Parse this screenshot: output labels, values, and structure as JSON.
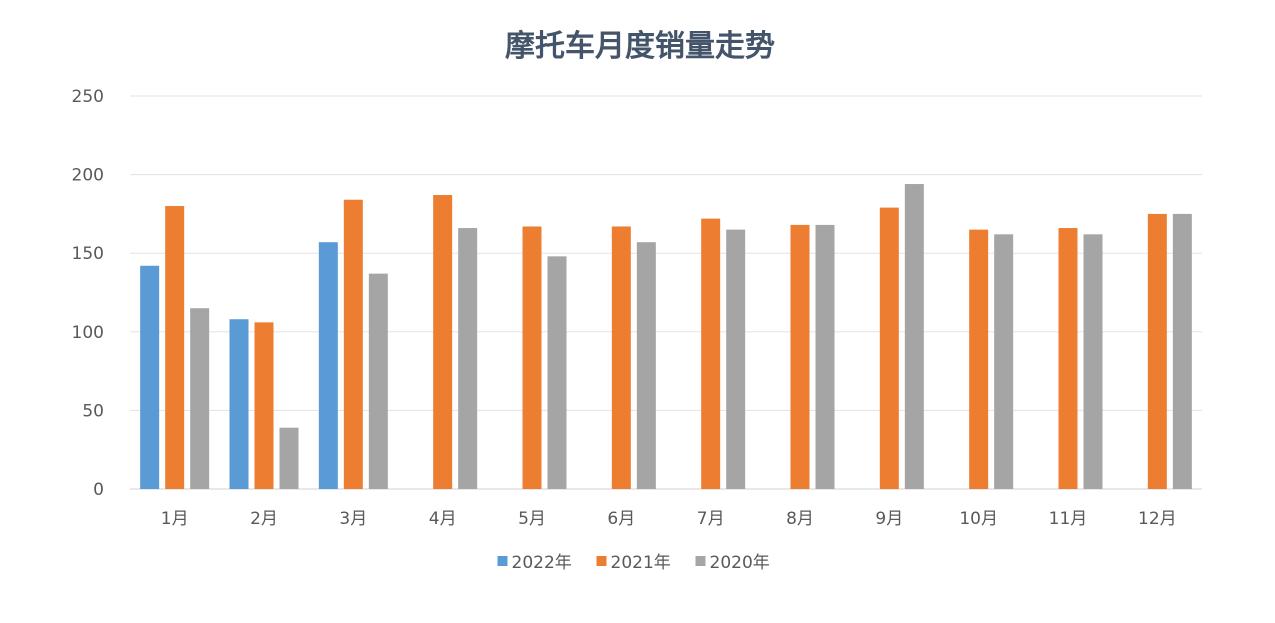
{
  "chart_data": {
    "type": "bar",
    "title": "摩托车月度销量走势",
    "xlabel": "",
    "ylabel": "",
    "categories": [
      "1月",
      "2月",
      "3月",
      "4月",
      "5月",
      "6月",
      "7月",
      "8月",
      "9月",
      "10月",
      "11月",
      "12月"
    ],
    "yticks": [
      "0",
      "50",
      "100",
      "150",
      "200",
      "250"
    ],
    "ylim": [
      0,
      250
    ],
    "grid": true,
    "legend_position": "bottom",
    "series": [
      {
        "name": "2022年",
        "color": "#5b9bd5",
        "values": [
          142,
          108,
          157,
          null,
          null,
          null,
          null,
          null,
          null,
          null,
          null,
          null
        ]
      },
      {
        "name": "2021年",
        "color": "#ed7d31",
        "values": [
          180,
          106,
          184,
          187,
          167,
          167,
          172,
          168,
          179,
          165,
          166,
          175
        ]
      },
      {
        "name": "2020年",
        "color": "#a5a5a5",
        "values": [
          115,
          39,
          137,
          166,
          148,
          157,
          165,
          168,
          194,
          162,
          162,
          175
        ]
      }
    ]
  }
}
